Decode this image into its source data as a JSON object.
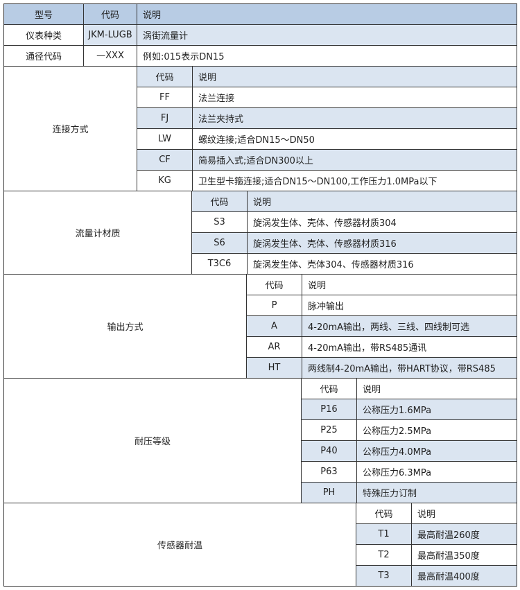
{
  "colors": {
    "header": "#b8cce4",
    "highlight": "#dbe5f1",
    "border": "#333333"
  },
  "top": {
    "header": [
      "型号",
      "代码",
      "说明"
    ],
    "rows": [
      {
        "name": "仪表种类",
        "code": "JKM-LUGB",
        "desc": "涡街流量计"
      },
      {
        "name": "通径代码",
        "code": "—XXX",
        "desc": "例如:015表示DN15"
      }
    ]
  },
  "sections": [
    {
      "label": "连接方式",
      "header": {
        "code": "代码",
        "desc": "说明",
        "highlight": true
      },
      "rows": [
        {
          "code": "FF",
          "desc": "法兰连接",
          "highlight": false
        },
        {
          "code": "FJ",
          "desc": "法兰夹持式",
          "highlight": true
        },
        {
          "code": "LW",
          "desc": "螺纹连接;适合DN15～DN50",
          "highlight": false
        },
        {
          "code": "CF",
          "desc": "简易插入式;适合DN300以上",
          "highlight": true
        },
        {
          "code": "KG",
          "desc": "卫生型卡箍连接;适合DN15～DN100,工作压力1.0MPa以下",
          "highlight": false
        }
      ]
    },
    {
      "label": "流量计材质",
      "header": {
        "code": "代码",
        "desc": "说明",
        "highlight": true
      },
      "rows": [
        {
          "code": "S3",
          "desc": "旋涡发生体、壳体、传感器材质304",
          "highlight": false
        },
        {
          "code": "S6",
          "desc": "旋涡发生体、壳体、传感器材质316",
          "highlight": true
        },
        {
          "code": "T3C6",
          "desc": "旋涡发生体、壳体304、传感器材质316",
          "highlight": false
        }
      ]
    },
    {
      "label": "输出方式",
      "header": {
        "code": "代码",
        "desc": "说明",
        "highlight": false
      },
      "rows": [
        {
          "code": "P",
          "desc": "脉冲输出",
          "highlight": false
        },
        {
          "code": "A",
          "desc": "4-20mA输出，两线、三线、四线制可选",
          "highlight": true
        },
        {
          "code": "AR",
          "desc": "4-20mA输出，带RS485通讯",
          "highlight": false
        },
        {
          "code": "HT",
          "desc": "两线制4-20mA输出，带HART协议，带RS485",
          "highlight": true
        }
      ]
    },
    {
      "label": "耐压等级",
      "header": {
        "code": "代码",
        "desc": "说明",
        "highlight": false
      },
      "rows": [
        {
          "code": "P16",
          "desc": "公称压力1.6MPa",
          "highlight": true
        },
        {
          "code": "P25",
          "desc": "公称压力2.5MPa",
          "highlight": false
        },
        {
          "code": "P40",
          "desc": "公称压力4.0MPa",
          "highlight": true
        },
        {
          "code": "P63",
          "desc": "公称压力6.3MPa",
          "highlight": false
        },
        {
          "code": "PH",
          "desc": "特殊压力订制",
          "highlight": true
        }
      ]
    },
    {
      "label": "传感器耐温",
      "header": {
        "code": "代码",
        "desc": "说明",
        "highlight": false
      },
      "rows": [
        {
          "code": "T1",
          "desc": "最高耐温260度",
          "highlight": true
        },
        {
          "code": "T2",
          "desc": "最高耐温350度",
          "highlight": false
        },
        {
          "code": "T3",
          "desc": "最高耐温400度",
          "highlight": true
        }
      ]
    }
  ]
}
